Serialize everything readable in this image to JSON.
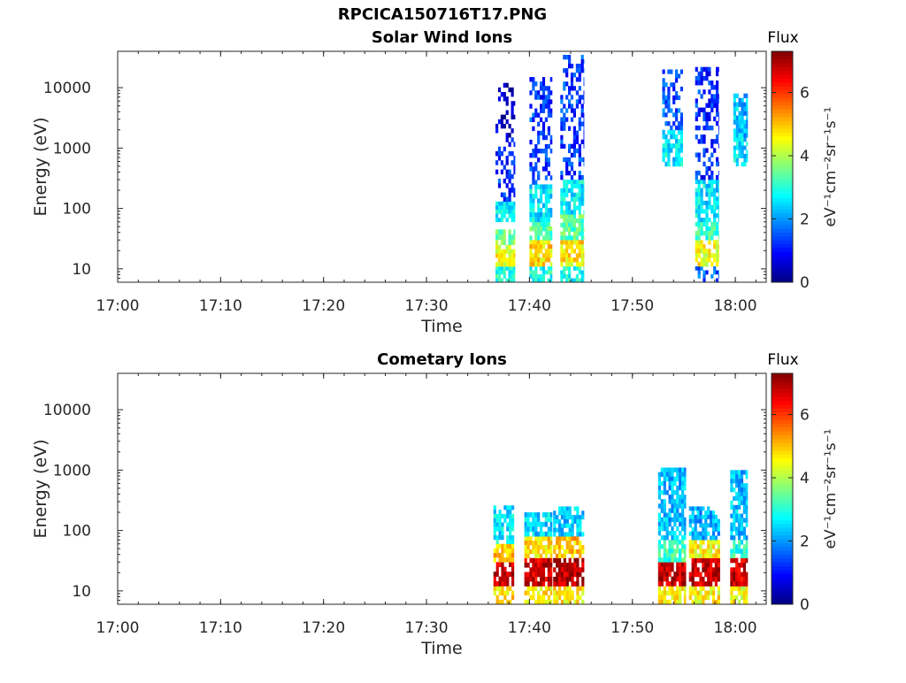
{
  "figure": {
    "title": "RPCICA150716T17.PNG"
  },
  "chart_data": [
    {
      "type": "heatmap",
      "title": "Solar Wind Ions",
      "xlabel": "Time",
      "ylabel": "Energy (eV)",
      "xlim": [
        "17:00",
        "18:03"
      ],
      "ylim": [
        6,
        40000
      ],
      "yscale": "log",
      "xticks": [
        "17:00",
        "17:10",
        "17:20",
        "17:30",
        "17:40",
        "17:50",
        "18:00"
      ],
      "yticks": [
        "10",
        "100",
        "1000",
        "10000"
      ],
      "grid": false,
      "colorbar": {
        "title": "Flux",
        "label": "eV⁻¹cm⁻²sr⁻¹s⁻¹",
        "range": [
          0,
          7.3
        ],
        "ticks": [
          "0",
          "2",
          "4",
          "6"
        ],
        "colormap": "jet"
      },
      "bursts": [
        {
          "time_start": "17:36.7",
          "time_end": "17:38.6",
          "cells": [
            {
              "e_low": 6,
              "e_high": 11,
              "flux": 3.0
            },
            {
              "e_low": 11,
              "e_high": 25,
              "flux": 4.5
            },
            {
              "e_low": 25,
              "e_high": 45,
              "flux": 3.6
            },
            {
              "e_low": 60,
              "e_high": 130,
              "flux": 2.7
            },
            {
              "e_low": 130,
              "e_high": 1500,
              "flux": 1.2
            },
            {
              "e_low": 1500,
              "e_high": 12000,
              "flux": 0.5
            }
          ]
        },
        {
          "time_start": "17:40.0",
          "time_end": "17:42.2",
          "cells": [
            {
              "e_low": 6,
              "e_high": 11,
              "flux": 2.9
            },
            {
              "e_low": 11,
              "e_high": 30,
              "flux": 4.8
            },
            {
              "e_low": 30,
              "e_high": 60,
              "flux": 3.3
            },
            {
              "e_low": 60,
              "e_high": 250,
              "flux": 2.6
            },
            {
              "e_low": 250,
              "e_high": 15000,
              "flux": 1.3
            }
          ]
        },
        {
          "time_start": "17:43.0",
          "time_end": "17:45.3",
          "cells": [
            {
              "e_low": 6,
              "e_high": 11,
              "flux": 2.9
            },
            {
              "e_low": 11,
              "e_high": 30,
              "flux": 4.7
            },
            {
              "e_low": 30,
              "e_high": 80,
              "flux": 3.4
            },
            {
              "e_low": 80,
              "e_high": 300,
              "flux": 2.7
            },
            {
              "e_low": 300,
              "e_high": 35000,
              "flux": 1.3
            }
          ]
        },
        {
          "time_start": "17:52.9",
          "time_end": "17:54.9",
          "cells": [
            {
              "e_low": 500,
              "e_high": 2000,
              "flux": 2.6
            },
            {
              "e_low": 2000,
              "e_high": 20000,
              "flux": 1.5
            }
          ]
        },
        {
          "time_start": "17:56.1",
          "time_end": "17:58.4",
          "cells": [
            {
              "e_low": 6,
              "e_high": 11,
              "flux": 1.6
            },
            {
              "e_low": 11,
              "e_high": 30,
              "flux": 4.5
            },
            {
              "e_low": 30,
              "e_high": 60,
              "flux": 3.2
            },
            {
              "e_low": 60,
              "e_high": 300,
              "flux": 2.6
            },
            {
              "e_low": 300,
              "e_high": 22000,
              "flux": 1.2
            }
          ]
        },
        {
          "time_start": "17:59.8",
          "time_end": "18:01.2",
          "cells": [
            {
              "e_low": 500,
              "e_high": 1500,
              "flux": 2.6
            },
            {
              "e_low": 1500,
              "e_high": 8000,
              "flux": 2.3
            }
          ]
        }
      ]
    },
    {
      "type": "heatmap",
      "title": "Cometary Ions",
      "xlabel": "Time",
      "ylabel": "Energy (eV)",
      "xlim": [
        "17:00",
        "18:03"
      ],
      "ylim": [
        6,
        40000
      ],
      "yscale": "log",
      "xticks": [
        "17:00",
        "17:10",
        "17:20",
        "17:30",
        "17:40",
        "17:50",
        "18:00"
      ],
      "yticks": [
        "10",
        "100",
        "1000",
        "10000"
      ],
      "grid": false,
      "colorbar": {
        "title": "Flux",
        "label": "eV⁻¹cm⁻²sr⁻¹s⁻¹",
        "range": [
          0,
          7.3
        ],
        "ticks": [
          "0",
          "2",
          "4",
          "6"
        ],
        "colormap": "jet"
      },
      "bursts": [
        {
          "time_start": "17:36.5",
          "time_end": "17:38.5",
          "cells": [
            {
              "e_low": 6,
              "e_high": 12,
              "flux": 4.8
            },
            {
              "e_low": 12,
              "e_high": 30,
              "flux": 6.8
            },
            {
              "e_low": 30,
              "e_high": 60,
              "flux": 5.0
            },
            {
              "e_low": 60,
              "e_high": 260,
              "flux": 2.6
            }
          ]
        },
        {
          "time_start": "17:39.5",
          "time_end": "17:42.2",
          "cells": [
            {
              "e_low": 6,
              "e_high": 12,
              "flux": 4.6
            },
            {
              "e_low": 12,
              "e_high": 35,
              "flux": 6.7
            },
            {
              "e_low": 35,
              "e_high": 80,
              "flux": 4.8
            },
            {
              "e_low": 80,
              "e_high": 200,
              "flux": 2.5
            }
          ]
        },
        {
          "time_start": "17:42.3",
          "time_end": "17:45.3",
          "cells": [
            {
              "e_low": 6,
              "e_high": 12,
              "flux": 4.7
            },
            {
              "e_low": 12,
              "e_high": 35,
              "flux": 6.9
            },
            {
              "e_low": 35,
              "e_high": 80,
              "flux": 5.0
            },
            {
              "e_low": 80,
              "e_high": 250,
              "flux": 2.4
            }
          ]
        },
        {
          "time_start": "17:52.5",
          "time_end": "17:55.2",
          "cells": [
            {
              "e_low": 6,
              "e_high": 12,
              "flux": 4.7
            },
            {
              "e_low": 12,
              "e_high": 30,
              "flux": 6.8
            },
            {
              "e_low": 30,
              "e_high": 70,
              "flux": 3.2
            },
            {
              "e_low": 70,
              "e_high": 1100,
              "flux": 2.3
            }
          ]
        },
        {
          "time_start": "17:55.5",
          "time_end": "17:58.5",
          "cells": [
            {
              "e_low": 6,
              "e_high": 12,
              "flux": 4.6
            },
            {
              "e_low": 12,
              "e_high": 35,
              "flux": 6.8
            },
            {
              "e_low": 35,
              "e_high": 70,
              "flux": 4.6
            },
            {
              "e_low": 70,
              "e_high": 250,
              "flux": 2.2
            }
          ]
        },
        {
          "time_start": "17:59.5",
          "time_end": "18:01.2",
          "cells": [
            {
              "e_low": 6,
              "e_high": 12,
              "flux": 4.5
            },
            {
              "e_low": 12,
              "e_high": 35,
              "flux": 6.7
            },
            {
              "e_low": 35,
              "e_high": 70,
              "flux": 3.0
            },
            {
              "e_low": 70,
              "e_high": 1000,
              "flux": 2.3
            }
          ]
        }
      ]
    }
  ]
}
